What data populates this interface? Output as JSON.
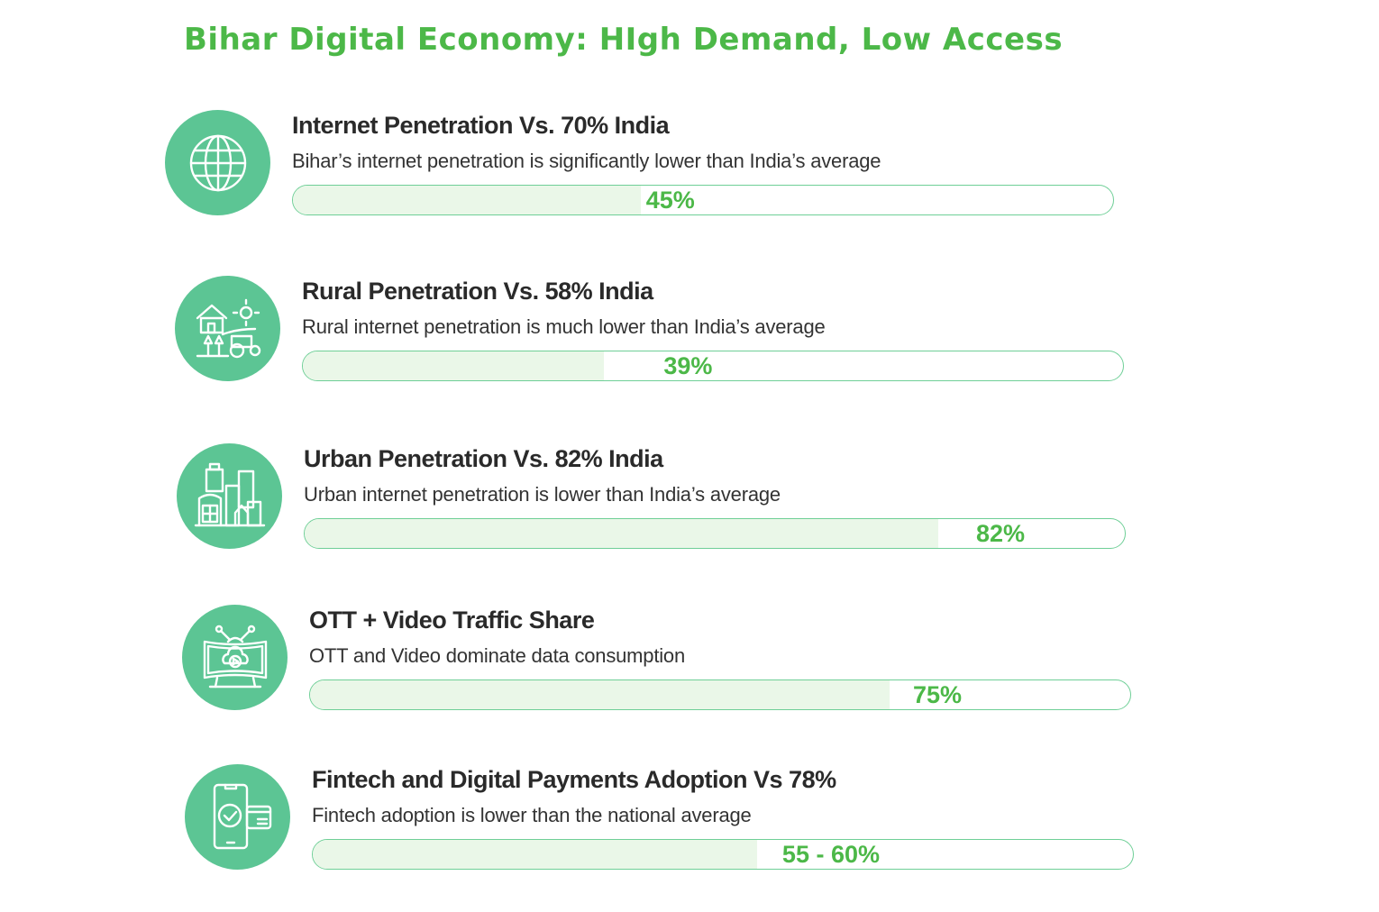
{
  "title": "Bihar Digital Economy: HIgh Demand, Low Access",
  "colors": {
    "title": "#4cb848",
    "circle": "#5cc594",
    "bar_border": "#6fcf97",
    "bar_fill": "#eaf7e8"
  },
  "chart_data": {
    "type": "bar",
    "title": "Bihar Digital Economy: HIgh Demand, Low Access",
    "xlim": [
      0,
      100
    ],
    "items": [
      {
        "icon": "globe-icon",
        "heading": "Internet Penetration Vs. 70% India",
        "description": "Bihar’s internet penetration is significantly lower than India’s average",
        "value": 45,
        "label": "45%"
      },
      {
        "icon": "rural-farm-icon",
        "heading": "Rural Penetration Vs. 58% India",
        "description": "Rural internet penetration is much lower than India’s average",
        "value": 39,
        "label": "39%"
      },
      {
        "icon": "city-buildings-icon",
        "heading": "Urban Penetration Vs. 82% India",
        "description": "Urban internet penetration is lower than India’s average",
        "value": 82,
        "label": "82%"
      },
      {
        "icon": "smart-tv-icon",
        "heading": "OTT + Video Traffic Share",
        "description": "OTT and Video dominate data consumption",
        "value": 75,
        "label": "75%"
      },
      {
        "icon": "mobile-payment-icon",
        "heading": "Fintech and Digital Payments Adoption Vs 78%",
        "description": "Fintech adoption is lower than the national average",
        "value": 57.5,
        "label": "55 - 60%"
      }
    ]
  }
}
